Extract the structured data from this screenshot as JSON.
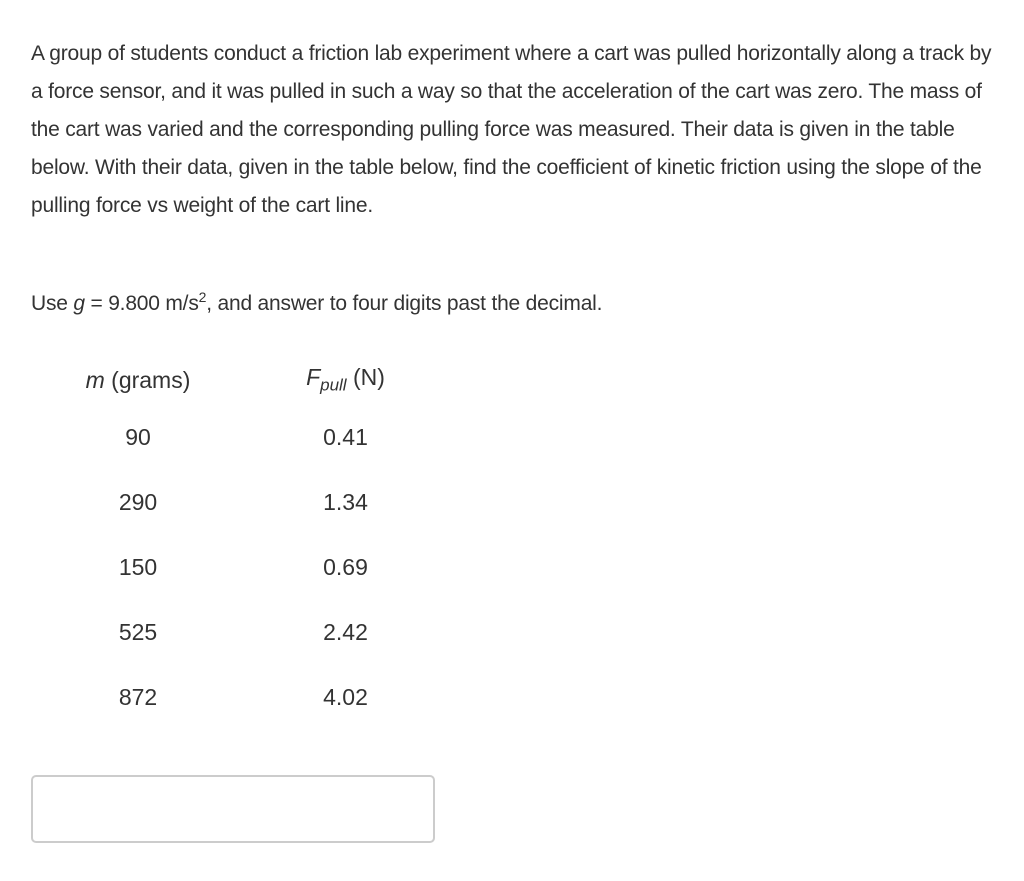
{
  "question": {
    "paragraph": "A group of students conduct a friction lab experiment where a cart was pulled horizontally along a track by a force sensor, and it was pulled in such a way so that the acceleration of the cart was zero. The mass of the cart was varied and the corresponding pulling force was measured. Their data is given in the table below. With their data, given in the table below, find the coefficient of kinetic friction using the slope of the pulling force vs weight of the cart line.",
    "note_prefix": "Use ",
    "note_var": "g",
    "note_value": " = 9.800 m/s",
    "note_exp": "2",
    "note_suffix": ", and answer to four digits past the decimal."
  },
  "table": {
    "col1_var": "m",
    "col1_unit": " (grams)",
    "col2_var": "F",
    "col2_sub": "pull",
    "col2_unit": " (N)",
    "rows": [
      [
        "90",
        "0.41"
      ],
      [
        "290",
        "1.34"
      ],
      [
        "150",
        "0.69"
      ],
      [
        "525",
        "2.42"
      ],
      [
        "872",
        "4.02"
      ]
    ]
  },
  "answer": {
    "value": "",
    "placeholder": ""
  }
}
